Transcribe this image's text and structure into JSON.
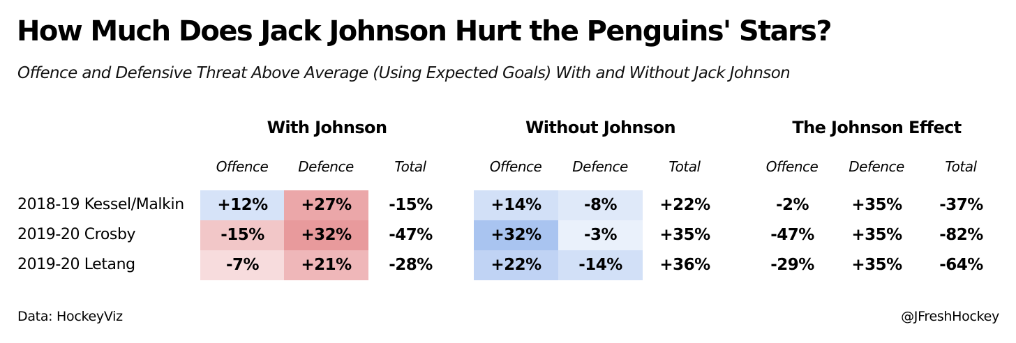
{
  "title": "How Much Does Jack Johnson Hurt the Penguins' Stars?",
  "subtitle": "Offence and Defensive Threat Above Average (Using Expected Goals) With and Without Jack Johnson",
  "source": "Data: HockeyViz",
  "credit": "@JFreshHockey",
  "chart_data": {
    "type": "table",
    "title": "How Much Does Jack Johnson Hurt the Penguins' Stars?",
    "groups": [
      {
        "name": "With Johnson",
        "columns": [
          "Offence",
          "Defence",
          "Total"
        ],
        "shaded": true
      },
      {
        "name": "Without Johnson",
        "columns": [
          "Offence",
          "Defence",
          "Total"
        ],
        "shaded": true
      },
      {
        "name": "The Johnson Effect",
        "columns": [
          "Offence",
          "Defence",
          "Total"
        ],
        "shaded": false
      }
    ],
    "rows": [
      "2018-19 Kessel/Malkin",
      "2019-20 Crosby",
      "2019-20 Letang"
    ],
    "values": [
      [
        12,
        27,
        -15,
        14,
        -8,
        22,
        -2,
        35,
        -37
      ],
      [
        -15,
        32,
        -47,
        32,
        -3,
        35,
        -47,
        35,
        -82
      ],
      [
        -7,
        21,
        -28,
        22,
        -14,
        36,
        -29,
        35,
        -64
      ]
    ],
    "labels": [
      [
        "+12%",
        "+27%",
        "-15%",
        "+14%",
        "-8%",
        "+22%",
        "-2%",
        "+35%",
        "-37%"
      ],
      [
        "-15%",
        "+32%",
        "-47%",
        "+32%",
        "-3%",
        "+35%",
        "-47%",
        "+35%",
        "-82%"
      ],
      [
        "-7%",
        "+21%",
        "-28%",
        "+22%",
        "-14%",
        "+36%",
        "-29%",
        "+35%",
        "-64%"
      ]
    ],
    "colors": {
      "good": "#a9c4f0",
      "bad": "#e89a9c",
      "neutral": "#ffffff"
    }
  }
}
